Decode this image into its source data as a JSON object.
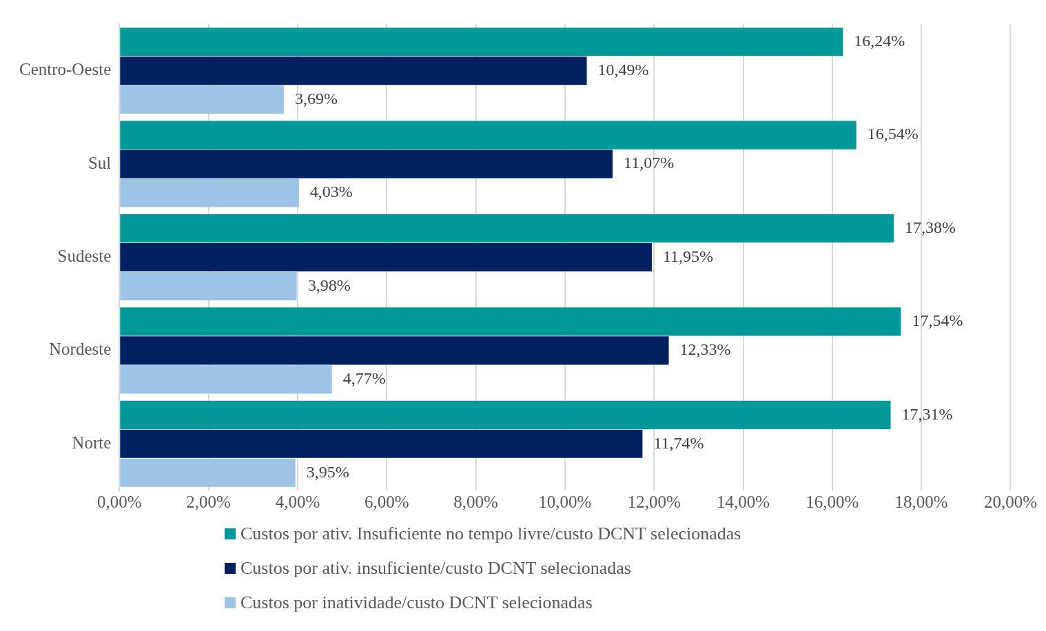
{
  "chart_data": {
    "type": "bar",
    "orientation": "horizontal",
    "categories": [
      "Centro-Oeste",
      "Sul",
      "Sudeste",
      "Nordeste",
      "Norte"
    ],
    "series": [
      {
        "name": "Custos por ativ. Insuficiente no tempo livre/custo DCNT selecionadas",
        "color": "#009999",
        "values": [
          16.24,
          16.54,
          17.38,
          17.54,
          17.31
        ],
        "value_labels": [
          "16,24%",
          "16,54%",
          "17,38%",
          "17,54%",
          "17,31%"
        ]
      },
      {
        "name": "Custos por ativ. insuficiente/custo DCNT selecionadas",
        "color": "#002060",
        "values": [
          10.49,
          11.07,
          11.95,
          12.33,
          11.74
        ],
        "value_labels": [
          "10,49%",
          "11,07%",
          "11,95%",
          "12,33%",
          "11,74%"
        ]
      },
      {
        "name": "Custos por inatividade/custo DCNT selecionadas",
        "color": "#9dc3e6",
        "values": [
          3.69,
          4.03,
          3.98,
          4.77,
          3.95
        ],
        "value_labels": [
          "3,69%",
          "4,03%",
          "3,98%",
          "4,77%",
          "3,95%"
        ]
      }
    ],
    "xlim": [
      0,
      20
    ],
    "xticks": [
      {
        "value": 0,
        "label": "0,00%"
      },
      {
        "value": 2,
        "label": "2,00%"
      },
      {
        "value": 4,
        "label": "4,00%"
      },
      {
        "value": 6,
        "label": "6,00%"
      },
      {
        "value": 8,
        "label": "8,00%"
      },
      {
        "value": 10,
        "label": "10,00%"
      },
      {
        "value": 12,
        "label": "12,00%"
      },
      {
        "value": 14,
        "label": "14,00%"
      },
      {
        "value": 16,
        "label": "16,00%"
      },
      {
        "value": 18,
        "label": "18,00%"
      },
      {
        "value": 20,
        "label": "20,00%"
      }
    ],
    "grid": "x",
    "legend": "bottom"
  }
}
